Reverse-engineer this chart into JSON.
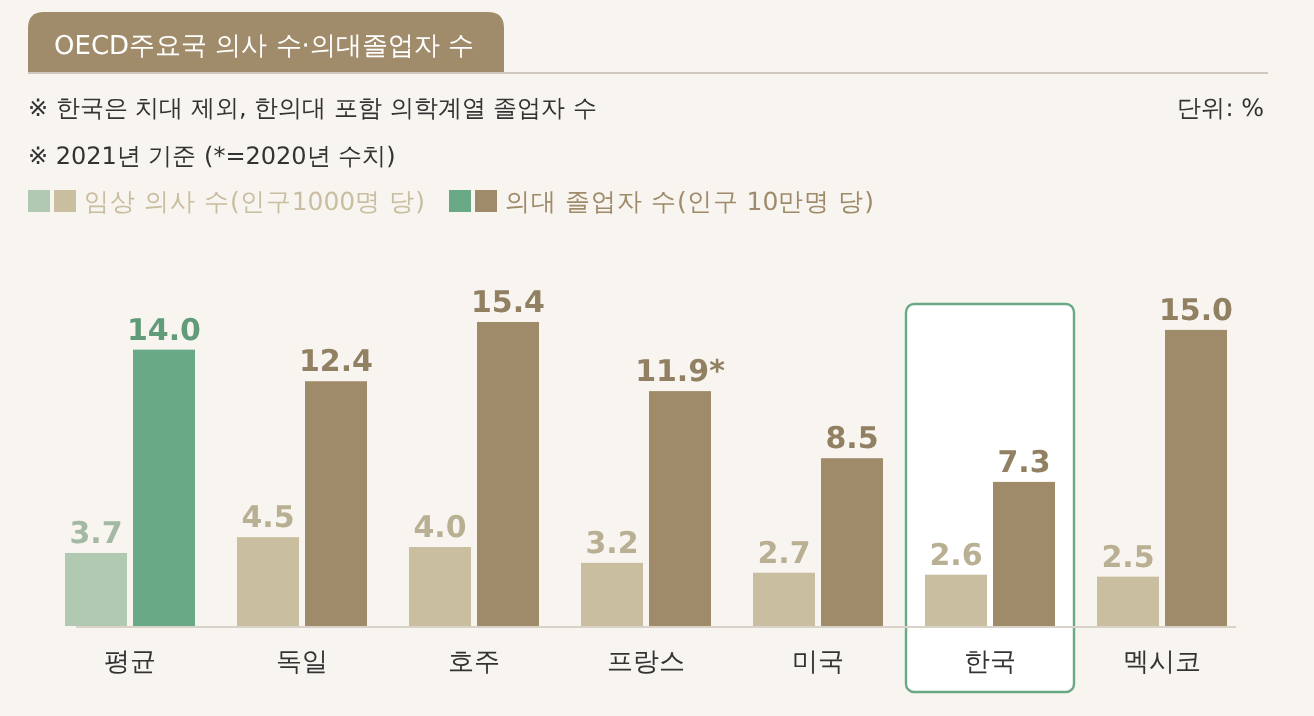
{
  "chart_data": {
    "type": "bar",
    "title": "OECD주요국 의사 수·의대졸업자 수",
    "annotations": [
      "※ 한국은 치대 제외, 한의대 포함 의학계열 졸업자 수",
      "※ 2021년 기준 (*=2020년 수치)",
      "단위: %"
    ],
    "categories": [
      "평균",
      "독일",
      "호주",
      "프랑스",
      "미국",
      "한국",
      "멕시코"
    ],
    "series": [
      {
        "name": "임상 의사 수(인구1000명 당)",
        "colors": [
          "#b2c9b1",
          "#c9bea0",
          "#c9bea0",
          "#c9bea0",
          "#c9bea0",
          "#c9bea0",
          "#c9bea0"
        ],
        "values": [
          3.7,
          4.5,
          4.0,
          3.2,
          2.7,
          2.6,
          2.5
        ],
        "value_labels": [
          "3.7",
          "4.5",
          "4.0",
          "3.2",
          "2.7",
          "2.6",
          "2.5"
        ]
      },
      {
        "name": "의대 졸업자 수(인구 10만명 당)",
        "colors": [
          "#69a985",
          "#9f8b6a",
          "#9f8b6a",
          "#9f8b6a",
          "#9f8b6a",
          "#9f8b6a",
          "#9f8b6a"
        ],
        "values": [
          14.0,
          12.4,
          15.4,
          11.9,
          8.5,
          7.3,
          15.0
        ],
        "value_labels": [
          "14.0",
          "12.4",
          "15.4",
          "11.9*",
          "8.5",
          "7.3",
          "15.0"
        ]
      }
    ],
    "bands": [
      {
        "axis": "x",
        "from": "한국",
        "to": "한국",
        "color": "#69a985"
      }
    ],
    "legend": "top left"
  }
}
